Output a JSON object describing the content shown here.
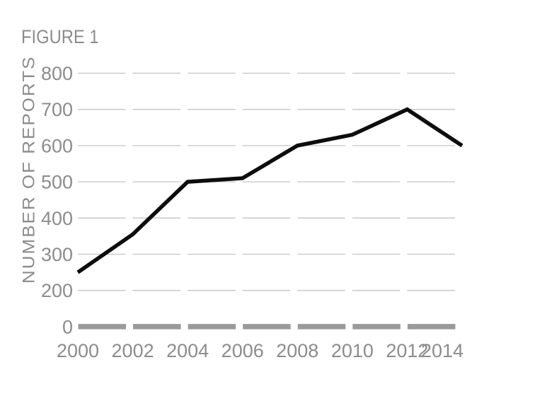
{
  "chart_data": {
    "type": "line",
    "title": "FIGURE 1",
    "ylabel": "NUMBER OF REPORTS",
    "xlabel": "",
    "x": [
      2000,
      2002,
      2004,
      2006,
      2008,
      2010,
      2012,
      2014
    ],
    "x_tick_labels": [
      "2000",
      "2002",
      "2004",
      "2006",
      "2008",
      "2010",
      "2012",
      "2014"
    ],
    "series": [
      {
        "name": "number-of-reports",
        "values": [
          250,
          355,
          500,
          510,
          600,
          630,
          700,
          600
        ]
      }
    ],
    "y_ticks": [
      800,
      700,
      600,
      500,
      400,
      300,
      200,
      0
    ],
    "axis_notes": "y-axis has a scale break between 200 and 0 (no 100 tick); all ticks evenly spaced; zero baseline drawn as thick gray dashes",
    "grid": "horizontal dashed gridlines, no vertical gridlines",
    "legend": "none",
    "markers": "none",
    "colors": {
      "line": "#0d0d0d",
      "grid": "#c5c5c5",
      "zero_line": "#9a9a9a",
      "text": "#8c8c8c",
      "background": "#ffffff"
    }
  }
}
